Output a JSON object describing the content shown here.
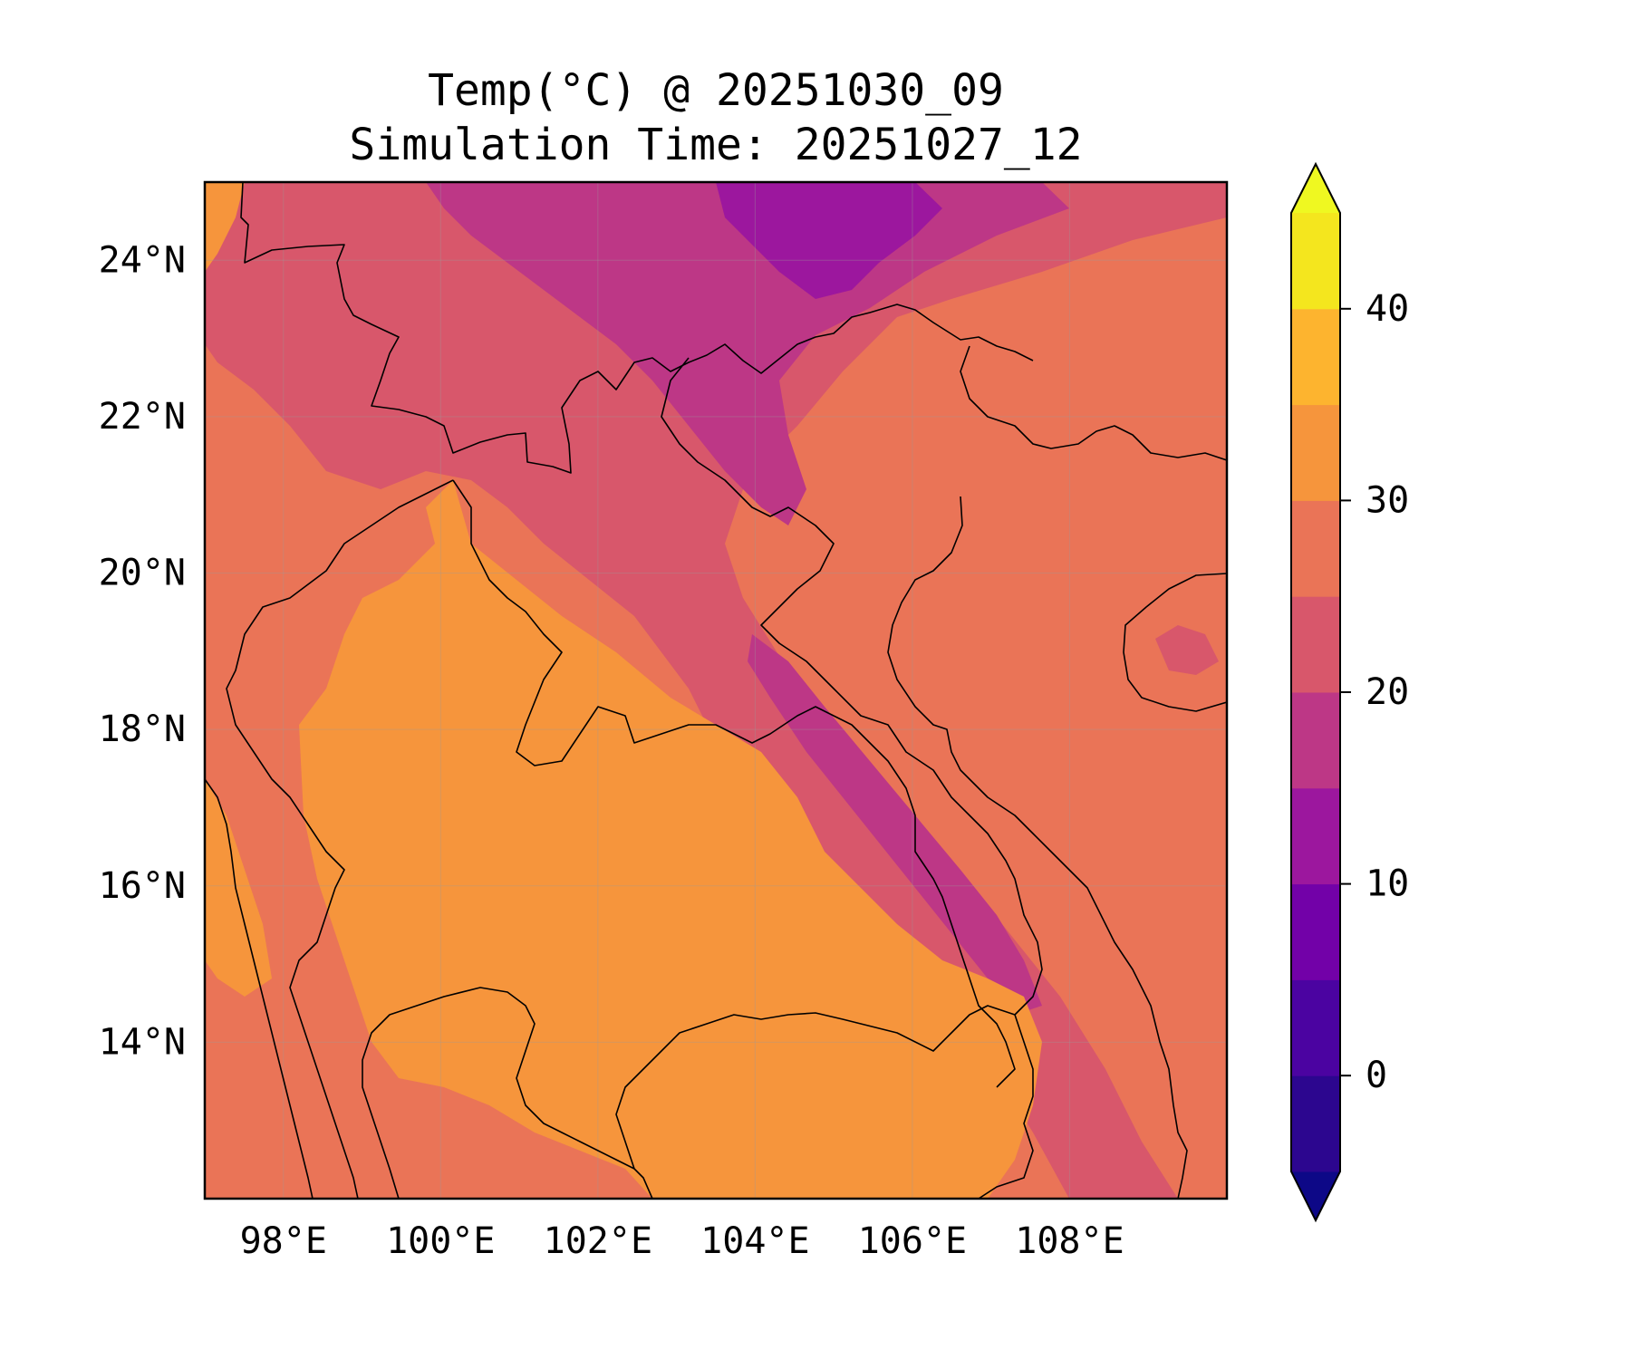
{
  "title": {
    "line1": "Temp(°C) @ 20251030_09",
    "line2": "Simulation Time: 20251027_12"
  },
  "map": {
    "lon_range": [
      97.0,
      110.0
    ],
    "lat_range": [
      12.0,
      25.0
    ],
    "lon_ticks": [
      {
        "value": 98,
        "label": "98°E"
      },
      {
        "value": 100,
        "label": "100°E"
      },
      {
        "value": 102,
        "label": "102°E"
      },
      {
        "value": 104,
        "label": "104°E"
      },
      {
        "value": 106,
        "label": "106°E"
      },
      {
        "value": 108,
        "label": "108°E"
      }
    ],
    "lat_ticks": [
      {
        "value": 24,
        "label": "24°N"
      },
      {
        "value": 22,
        "label": "22°N"
      },
      {
        "value": 20,
        "label": "20°N"
      },
      {
        "value": 18,
        "label": "18°N"
      },
      {
        "value": 16,
        "label": "16°N"
      },
      {
        "value": 14,
        "label": "14°N"
      }
    ],
    "gridlines": true
  },
  "colorbar": {
    "levels": [
      -5,
      0,
      5,
      10,
      15,
      20,
      25,
      30,
      35,
      40,
      45
    ],
    "extend": "both",
    "ticks": [
      {
        "value": 0,
        "label": "0"
      },
      {
        "value": 10,
        "label": "10"
      },
      {
        "value": 20,
        "label": "20"
      },
      {
        "value": 30,
        "label": "30"
      },
      {
        "value": 40,
        "label": "40"
      }
    ],
    "colors": [
      "#0d0887",
      "#2c068f",
      "#4b03a1",
      "#7201a8",
      "#9c179e",
      "#bd3786",
      "#d8576b",
      "#ea7457",
      "#f6953c",
      "#fdb42f",
      "#f4e61e",
      "#eff821"
    ]
  },
  "colors": {
    "warm_zone": "#f6953c",
    "mid_zone": "#ea7457",
    "cool_zone": "#d8576b",
    "cold_zone": "#bd3786",
    "coldest_zone": "#9c179e"
  }
}
